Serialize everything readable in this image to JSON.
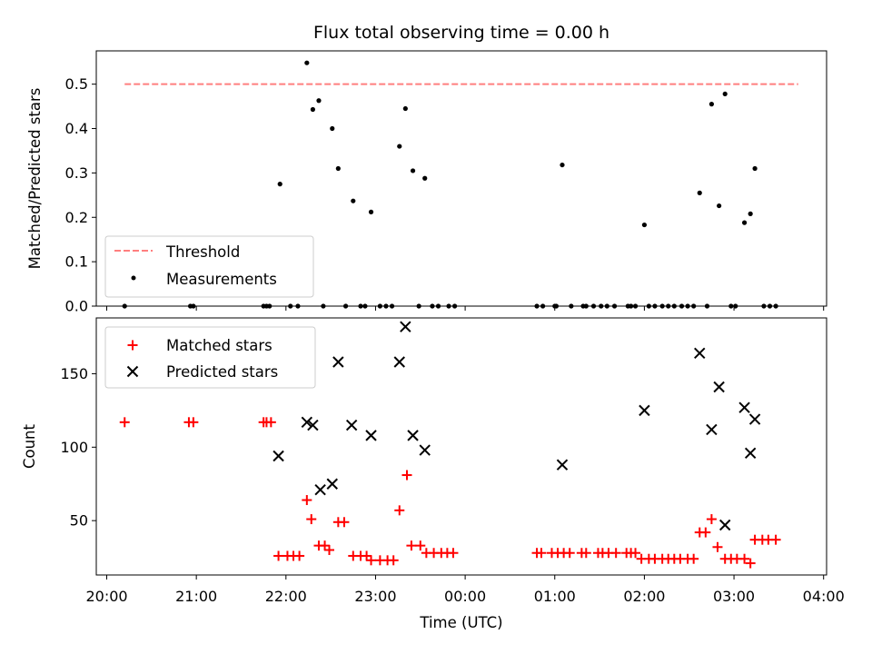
{
  "chart_data": [
    {
      "type": "scatter",
      "title": "Flux total observing time = 0.00 h",
      "ylabel": "Matched/Predicted stars",
      "xlim": [
        "19:53",
        "04:02"
      ],
      "ylim": [
        0,
        0.575
      ],
      "yticks": [
        "0.0",
        "0.1",
        "0.2",
        "0.3",
        "0.4",
        "0.5"
      ],
      "legend": {
        "location": "lower left",
        "entries": [
          "Threshold",
          "Measurements"
        ]
      },
      "threshold": {
        "name": "Threshold",
        "value": 0.5,
        "x_range": [
          "20:12",
          "03:43"
        ],
        "color": "#ff7f7f",
        "style": "dashed"
      },
      "series": [
        {
          "name": "Measurements",
          "color": "#000000",
          "marker": "dot",
          "points": [
            {
              "x": "20:12",
              "y": 0
            },
            {
              "x": "20:56",
              "y": 0
            },
            {
              "x": "20:58",
              "y": 0
            },
            {
              "x": "21:45",
              "y": 0
            },
            {
              "x": "21:47",
              "y": 0
            },
            {
              "x": "21:49",
              "y": 0
            },
            {
              "x": "21:56",
              "y": 0.275
            },
            {
              "x": "22:03",
              "y": 0
            },
            {
              "x": "22:08",
              "y": 0
            },
            {
              "x": "22:14",
              "y": 0.548
            },
            {
              "x": "22:18",
              "y": 0.443
            },
            {
              "x": "22:22",
              "y": 0.463
            },
            {
              "x": "22:25",
              "y": 0
            },
            {
              "x": "22:31",
              "y": 0.4
            },
            {
              "x": "22:35",
              "y": 0.31
            },
            {
              "x": "22:40",
              "y": 0
            },
            {
              "x": "22:45",
              "y": 0.237
            },
            {
              "x": "22:50",
              "y": 0
            },
            {
              "x": "22:53",
              "y": 0
            },
            {
              "x": "22:57",
              "y": 0.212
            },
            {
              "x": "23:03",
              "y": 0
            },
            {
              "x": "23:07",
              "y": 0
            },
            {
              "x": "23:11",
              "y": 0
            },
            {
              "x": "23:16",
              "y": 0.36
            },
            {
              "x": "23:20",
              "y": 0.445
            },
            {
              "x": "23:25",
              "y": 0.305
            },
            {
              "x": "23:29",
              "y": 0
            },
            {
              "x": "23:33",
              "y": 0.288
            },
            {
              "x": "23:38",
              "y": 0
            },
            {
              "x": "23:42",
              "y": 0
            },
            {
              "x": "23:49",
              "y": 0
            },
            {
              "x": "23:53",
              "y": 0
            },
            {
              "x": "00:48",
              "y": 0
            },
            {
              "x": "00:52",
              "y": 0
            },
            {
              "x": "01:00",
              "y": 0
            },
            {
              "x": "01:01",
              "y": 0
            },
            {
              "x": "01:05",
              "y": 0.318
            },
            {
              "x": "01:11",
              "y": 0
            },
            {
              "x": "01:19",
              "y": 0
            },
            {
              "x": "01:21",
              "y": 0
            },
            {
              "x": "01:26",
              "y": 0
            },
            {
              "x": "01:31",
              "y": 0
            },
            {
              "x": "01:35",
              "y": 0
            },
            {
              "x": "01:40",
              "y": 0
            },
            {
              "x": "01:49",
              "y": 0
            },
            {
              "x": "01:51",
              "y": 0
            },
            {
              "x": "01:54",
              "y": 0
            },
            {
              "x": "02:00",
              "y": 0.183
            },
            {
              "x": "02:03",
              "y": 0
            },
            {
              "x": "02:07",
              "y": 0
            },
            {
              "x": "02:12",
              "y": 0
            },
            {
              "x": "02:16",
              "y": 0
            },
            {
              "x": "02:20",
              "y": 0
            },
            {
              "x": "02:25",
              "y": 0
            },
            {
              "x": "02:29",
              "y": 0
            },
            {
              "x": "02:33",
              "y": 0
            },
            {
              "x": "02:37",
              "y": 0.255
            },
            {
              "x": "02:42",
              "y": 0
            },
            {
              "x": "02:45",
              "y": 0.455
            },
            {
              "x": "02:50",
              "y": 0.226
            },
            {
              "x": "02:54",
              "y": 0.478
            },
            {
              "x": "02:58",
              "y": 0
            },
            {
              "x": "03:01",
              "y": 0
            },
            {
              "x": "03:07",
              "y": 0.188
            },
            {
              "x": "03:11",
              "y": 0.208
            },
            {
              "x": "03:14",
              "y": 0.31
            },
            {
              "x": "03:20",
              "y": 0
            },
            {
              "x": "03:24",
              "y": 0
            },
            {
              "x": "03:28",
              "y": 0
            }
          ]
        }
      ]
    },
    {
      "type": "scatter",
      "xlabel": "Time (UTC)",
      "ylabel": "Count",
      "xlim": [
        "19:53",
        "04:02"
      ],
      "ylim": [
        13,
        188
      ],
      "xticks": [
        "20:00",
        "21:00",
        "22:00",
        "23:00",
        "00:00",
        "01:00",
        "02:00",
        "03:00",
        "04:00"
      ],
      "yticks": [
        "50",
        "100",
        "150"
      ],
      "legend": {
        "location": "upper left",
        "entries": [
          "Matched stars",
          "Predicted stars"
        ]
      },
      "series": [
        {
          "name": "Matched stars",
          "color": "#ff0000",
          "marker": "plus",
          "points": [
            {
              "x": "20:12",
              "y": 117
            },
            {
              "x": "20:55",
              "y": 117
            },
            {
              "x": "20:58",
              "y": 117
            },
            {
              "x": "21:45",
              "y": 117
            },
            {
              "x": "21:47",
              "y": 117
            },
            {
              "x": "21:50",
              "y": 117
            },
            {
              "x": "21:55",
              "y": 26
            },
            {
              "x": "22:01",
              "y": 26
            },
            {
              "x": "22:05",
              "y": 26
            },
            {
              "x": "22:09",
              "y": 26
            },
            {
              "x": "22:14",
              "y": 64
            },
            {
              "x": "22:17",
              "y": 51
            },
            {
              "x": "22:22",
              "y": 33
            },
            {
              "x": "22:26",
              "y": 33
            },
            {
              "x": "22:29",
              "y": 30
            },
            {
              "x": "22:35",
              "y": 49
            },
            {
              "x": "22:39",
              "y": 49
            },
            {
              "x": "22:45",
              "y": 26
            },
            {
              "x": "22:50",
              "y": 26
            },
            {
              "x": "22:54",
              "y": 26
            },
            {
              "x": "22:57",
              "y": 23
            },
            {
              "x": "23:03",
              "y": 23
            },
            {
              "x": "23:08",
              "y": 23
            },
            {
              "x": "23:12",
              "y": 23
            },
            {
              "x": "23:16",
              "y": 57
            },
            {
              "x": "23:21",
              "y": 81
            },
            {
              "x": "23:24",
              "y": 33
            },
            {
              "x": "23:30",
              "y": 33
            },
            {
              "x": "23:34",
              "y": 28
            },
            {
              "x": "23:39",
              "y": 28
            },
            {
              "x": "23:44",
              "y": 28
            },
            {
              "x": "23:48",
              "y": 28
            },
            {
              "x": "23:52",
              "y": 28
            },
            {
              "x": "00:48",
              "y": 28
            },
            {
              "x": "00:51",
              "y": 28
            },
            {
              "x": "00:58",
              "y": 28
            },
            {
              "x": "01:02",
              "y": 28
            },
            {
              "x": "01:06",
              "y": 28
            },
            {
              "x": "01:10",
              "y": 28
            },
            {
              "x": "01:18",
              "y": 28
            },
            {
              "x": "01:21",
              "y": 28
            },
            {
              "x": "01:29",
              "y": 28
            },
            {
              "x": "01:32",
              "y": 28
            },
            {
              "x": "01:36",
              "y": 28
            },
            {
              "x": "01:41",
              "y": 28
            },
            {
              "x": "01:48",
              "y": 28
            },
            {
              "x": "01:51",
              "y": 28
            },
            {
              "x": "01:54",
              "y": 28
            },
            {
              "x": "01:58",
              "y": 24
            },
            {
              "x": "02:03",
              "y": 24
            },
            {
              "x": "02:07",
              "y": 24
            },
            {
              "x": "02:12",
              "y": 24
            },
            {
              "x": "02:16",
              "y": 24
            },
            {
              "x": "02:20",
              "y": 24
            },
            {
              "x": "02:24",
              "y": 24
            },
            {
              "x": "02:29",
              "y": 24
            },
            {
              "x": "02:33",
              "y": 24
            },
            {
              "x": "02:37",
              "y": 42
            },
            {
              "x": "02:41",
              "y": 42
            },
            {
              "x": "02:45",
              "y": 51
            },
            {
              "x": "02:49",
              "y": 32
            },
            {
              "x": "02:54",
              "y": 24
            },
            {
              "x": "02:58",
              "y": 24
            },
            {
              "x": "03:02",
              "y": 24
            },
            {
              "x": "03:07",
              "y": 24
            },
            {
              "x": "03:11",
              "y": 21
            },
            {
              "x": "03:14",
              "y": 37
            },
            {
              "x": "03:19",
              "y": 37
            },
            {
              "x": "03:23",
              "y": 37
            },
            {
              "x": "03:28",
              "y": 37
            }
          ]
        },
        {
          "name": "Predicted stars",
          "color": "#000000",
          "marker": "x",
          "points": [
            {
              "x": "21:55",
              "y": 94
            },
            {
              "x": "22:14",
              "y": 117
            },
            {
              "x": "22:18",
              "y": 115
            },
            {
              "x": "22:23",
              "y": 71
            },
            {
              "x": "22:31",
              "y": 75
            },
            {
              "x": "22:35",
              "y": 158
            },
            {
              "x": "22:44",
              "y": 115
            },
            {
              "x": "22:57",
              "y": 108
            },
            {
              "x": "23:16",
              "y": 158
            },
            {
              "x": "23:20",
              "y": 182
            },
            {
              "x": "23:25",
              "y": 108
            },
            {
              "x": "23:33",
              "y": 98
            },
            {
              "x": "01:05",
              "y": 88
            },
            {
              "x": "02:00",
              "y": 125
            },
            {
              "x": "02:37",
              "y": 164
            },
            {
              "x": "02:45",
              "y": 112
            },
            {
              "x": "02:50",
              "y": 141
            },
            {
              "x": "02:54",
              "y": 47
            },
            {
              "x": "03:07",
              "y": 127
            },
            {
              "x": "03:11",
              "y": 96
            },
            {
              "x": "03:14",
              "y": 119
            }
          ]
        }
      ]
    }
  ]
}
